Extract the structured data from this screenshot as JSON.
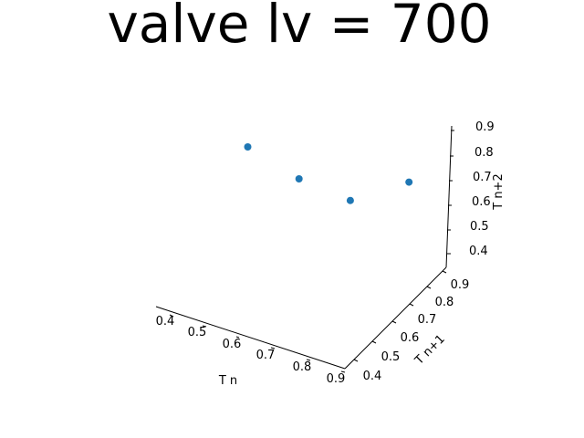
{
  "chart_data": {
    "type": "scatter",
    "title": "valve lv = 700",
    "xlabel": "T n",
    "ylabel": "T n+1",
    "zlabel": "T n+2",
    "xticks": [
      "0.4",
      "0.5",
      "0.6",
      "0.7",
      "0.8",
      "0.9"
    ],
    "yticks": [
      "0.4",
      "0.5",
      "0.6",
      "0.7",
      "0.8",
      "0.9"
    ],
    "zticks": [
      "0.4",
      "0.5",
      "0.6",
      "0.7",
      "0.8",
      "0.9"
    ],
    "xlim": [
      0.35,
      0.95
    ],
    "ylim": [
      0.35,
      0.95
    ],
    "zlim": [
      0.35,
      0.95
    ],
    "grid": false,
    "point_color": "#1f77b4",
    "points": [
      {
        "x": 0.52,
        "y": 0.88,
        "z": 0.56
      },
      {
        "x": 0.88,
        "y": 0.86,
        "z": 0.7
      },
      {
        "x": 0.86,
        "y": 0.55,
        "z": 0.82
      },
      {
        "x": 0.55,
        "y": 0.52,
        "z": 0.92
      }
    ]
  }
}
